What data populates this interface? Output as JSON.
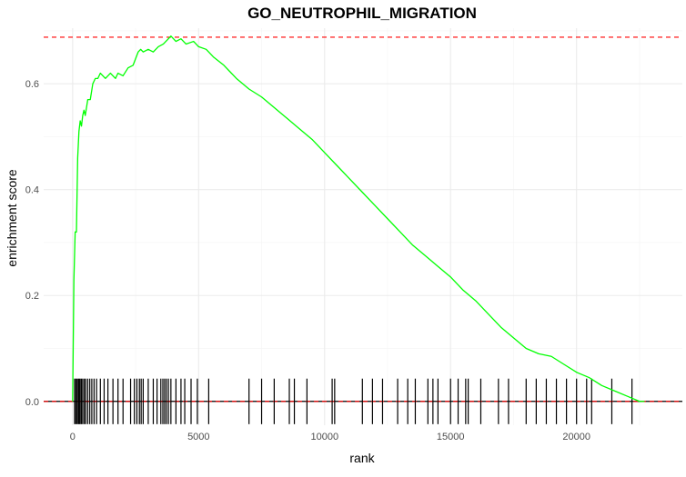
{
  "chart_data": {
    "type": "line",
    "title": "GO_NEUTROPHIL_MIGRATION",
    "xlabel": "rank",
    "ylabel": "enrichment score",
    "xlim": [
      -1150,
      24200
    ],
    "ylim": [
      -0.045,
      0.705
    ],
    "xticks": [
      0,
      5000,
      10000,
      15000,
      20000
    ],
    "xtick_labels": [
      "0",
      "5000",
      "10000",
      "15000",
      "20000"
    ],
    "yticks": [
      0.0,
      0.2,
      0.4,
      0.6
    ],
    "ytick_labels": [
      "0.0",
      "0.2",
      "0.4",
      "0.6"
    ],
    "grid": true,
    "legend": "none",
    "series": [
      {
        "color": "#00ff00",
        "x": [
          0,
          50,
          100,
          150,
          200,
          250,
          300,
          350,
          400,
          450,
          500,
          600,
          700,
          800,
          900,
          1000,
          1100,
          1300,
          1500,
          1700,
          1800,
          2000,
          2200,
          2400,
          2600,
          2700,
          2800,
          3000,
          3200,
          3400,
          3600,
          3800,
          3900,
          4100,
          4300,
          4500,
          4800,
          5000,
          5300,
          5600,
          6000,
          6500,
          7000,
          7500,
          8000,
          8500,
          9000,
          9500,
          10000,
          10500,
          11000,
          11500,
          12000,
          12500,
          13000,
          13500,
          14000,
          14500,
          15000,
          15500,
          16000,
          16500,
          17000,
          17500,
          18000,
          18500,
          19000,
          19500,
          20000,
          20500,
          21000,
          21500,
          22000,
          22500,
          22700
        ],
        "values": [
          0.0,
          0.23,
          0.32,
          0.32,
          0.46,
          0.51,
          0.53,
          0.52,
          0.54,
          0.55,
          0.54,
          0.57,
          0.57,
          0.6,
          0.61,
          0.61,
          0.62,
          0.61,
          0.62,
          0.61,
          0.62,
          0.615,
          0.63,
          0.635,
          0.66,
          0.665,
          0.66,
          0.665,
          0.66,
          0.67,
          0.675,
          0.685,
          0.69,
          0.68,
          0.685,
          0.675,
          0.68,
          0.67,
          0.665,
          0.65,
          0.635,
          0.61,
          0.59,
          0.575,
          0.555,
          0.535,
          0.515,
          0.495,
          0.47,
          0.445,
          0.42,
          0.395,
          0.37,
          0.345,
          0.32,
          0.295,
          0.275,
          0.255,
          0.235,
          0.21,
          0.19,
          0.165,
          0.14,
          0.12,
          0.1,
          0.09,
          0.085,
          0.07,
          0.055,
          0.045,
          0.03,
          0.02,
          0.01,
          0.0,
          0.0
        ]
      }
    ],
    "hit_ranks": [
      80,
      120,
      170,
      220,
      260,
      300,
      350,
      400,
      460,
      520,
      600,
      680,
      760,
      850,
      950,
      1100,
      1250,
      1400,
      1600,
      1800,
      2000,
      2300,
      2450,
      2550,
      2650,
      2720,
      2800,
      3000,
      3200,
      3350,
      3500,
      3580,
      3650,
      3720,
      3800,
      3900,
      4100,
      4300,
      4450,
      4700,
      4950,
      5400,
      7000,
      7500,
      8000,
      8600,
      8800,
      9300,
      10300,
      10400,
      11500,
      11900,
      12300,
      12900,
      13300,
      13600,
      14100,
      14300,
      14500,
      15000,
      15300,
      15600,
      15700,
      16200,
      16900,
      17300,
      18000,
      18400,
      18800,
      19200,
      19600,
      20000,
      20400,
      20600,
      21400,
      22200
    ],
    "reference_lines": [
      {
        "axis": "y",
        "value": 0.688,
        "color": "#ff0000",
        "style": "dashed"
      },
      {
        "axis": "y",
        "value": 0.0,
        "color": "#ff0000",
        "style": "dashed"
      }
    ]
  }
}
